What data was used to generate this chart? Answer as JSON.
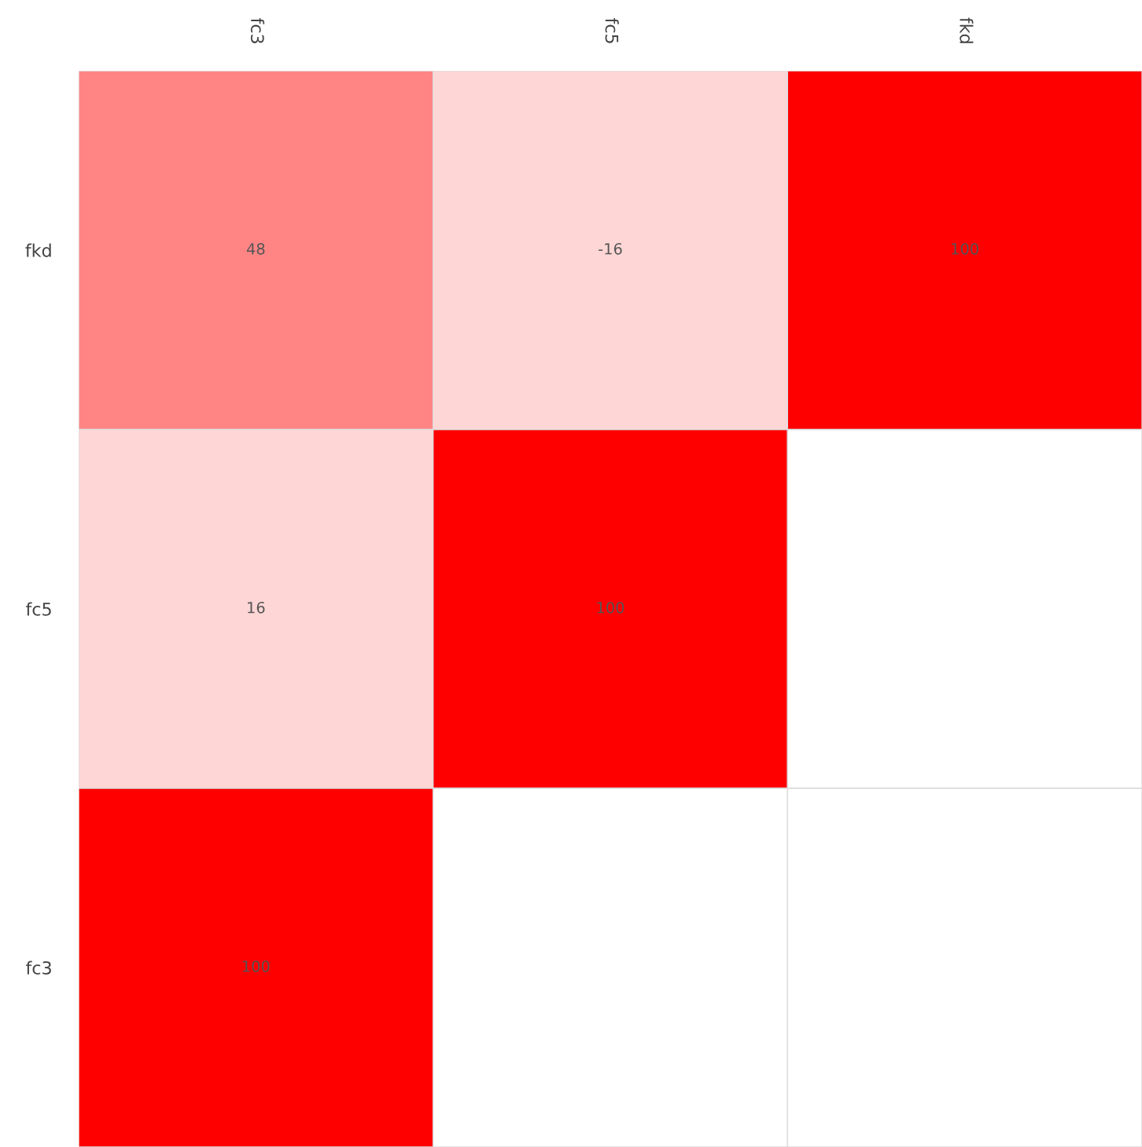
{
  "chart_data": {
    "type": "heatmap",
    "color": "#ff0000",
    "categories": [
      "fc3",
      "fc5",
      "fkd"
    ],
    "y_categories": [
      "fkd",
      "fc5",
      "fc3"
    ],
    "cells": [
      [
        48,
        -16,
        100
      ],
      [
        16,
        100,
        null
      ],
      [
        100,
        null,
        null
      ]
    ],
    "data_labels": true
  }
}
